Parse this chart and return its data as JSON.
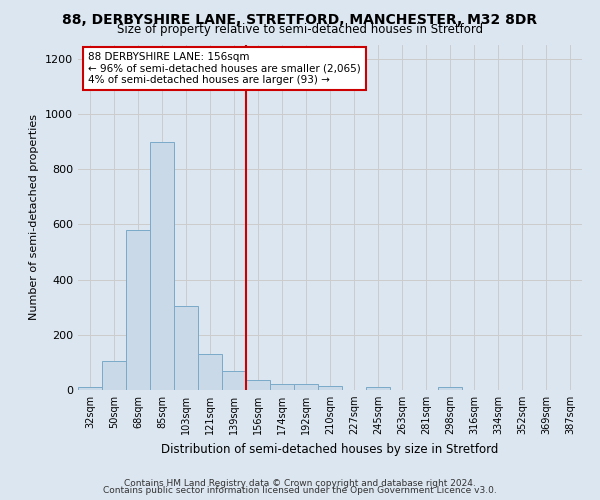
{
  "title": "88, DERBYSHIRE LANE, STRETFORD, MANCHESTER, M32 8DR",
  "subtitle": "Size of property relative to semi-detached houses in Stretford",
  "xlabel": "Distribution of semi-detached houses by size in Stretford",
  "ylabel": "Number of semi-detached properties",
  "footer_line1": "Contains HM Land Registry data © Crown copyright and database right 2024.",
  "footer_line2": "Contains public sector information licensed under the Open Government Licence v3.0.",
  "categories": [
    "32sqm",
    "50sqm",
    "68sqm",
    "85sqm",
    "103sqm",
    "121sqm",
    "139sqm",
    "156sqm",
    "174sqm",
    "192sqm",
    "210sqm",
    "227sqm",
    "245sqm",
    "263sqm",
    "281sqm",
    "298sqm",
    "316sqm",
    "334sqm",
    "352sqm",
    "369sqm",
    "387sqm"
  ],
  "values": [
    10,
    105,
    580,
    900,
    305,
    130,
    70,
    35,
    22,
    20,
    15,
    0,
    12,
    0,
    0,
    10,
    0,
    0,
    0,
    0,
    0
  ],
  "bar_color": "#c9d9e8",
  "bar_edge_color": "#7aaac8",
  "property_line_idx": 7,
  "annotation_title": "88 DERBYSHIRE LANE: 156sqm",
  "annotation_line1": "← 96% of semi-detached houses are smaller (2,065)",
  "annotation_line2": "4% of semi-detached houses are larger (93) →",
  "vline_color": "#cc0000",
  "annotation_box_facecolor": "#ffffff",
  "annotation_box_edgecolor": "#cc0000",
  "grid_color": "#cccccc",
  "background_color": "#dce6f0",
  "ylim": [
    0,
    1250
  ],
  "yticks": [
    0,
    200,
    400,
    600,
    800,
    1000,
    1200
  ],
  "title_fontsize": 10,
  "subtitle_fontsize": 8.5
}
